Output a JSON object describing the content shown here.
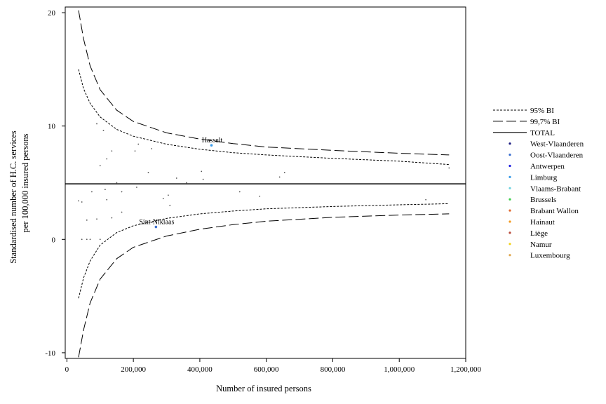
{
  "chart_data": {
    "type": "scatter",
    "title": "",
    "xlabel": "Number of insured persons",
    "ylabel_lines": [
      "Standardised number of H.C. services",
      "per 100,000 insured persons"
    ],
    "xlim": [
      -5000,
      1200000
    ],
    "ylim": [
      -10.5,
      20.5
    ],
    "x_ticks": [
      0,
      200000,
      400000,
      600000,
      800000,
      1000000,
      1200000
    ],
    "x_tick_labels": [
      "0",
      "200,000",
      "400,000",
      "600,000",
      "800,000",
      "1,000,000",
      "1,200,000"
    ],
    "y_ticks": [
      -10,
      0,
      10,
      20
    ],
    "y_tick_labels": [
      "-10",
      "0",
      "10",
      "20"
    ],
    "grid": false,
    "legend_position": "right",
    "total_rate": 4.9,
    "limits": {
      "ci95": {
        "label": "95% BI",
        "x": [
          35000,
          50000,
          70000,
          100000,
          150000,
          200000,
          300000,
          400000,
          500000,
          600000,
          800000,
          1000000,
          1150000
        ],
        "upper": [
          15.0,
          13.3,
          12.0,
          10.8,
          9.7,
          9.1,
          8.4,
          7.95,
          7.65,
          7.45,
          7.15,
          6.9,
          6.6
        ],
        "lower": [
          -5.2,
          -3.4,
          -1.9,
          -0.5,
          0.6,
          1.2,
          1.85,
          2.25,
          2.5,
          2.7,
          2.9,
          3.05,
          3.15
        ]
      },
      "ci997": {
        "label": "99,7% BI",
        "x": [
          35000,
          50000,
          70000,
          100000,
          150000,
          200000,
          300000,
          400000,
          500000,
          600000,
          800000,
          1000000,
          1150000
        ],
        "upper": [
          20.2,
          17.7,
          15.3,
          13.2,
          11.4,
          10.4,
          9.4,
          8.85,
          8.45,
          8.15,
          7.85,
          7.6,
          7.45
        ],
        "lower": [
          -10.4,
          -8.0,
          -5.6,
          -3.5,
          -1.7,
          -0.7,
          0.3,
          0.9,
          1.3,
          1.6,
          1.95,
          2.15,
          2.25
        ]
      }
    },
    "total_label": "TOTAL",
    "series": [
      {
        "name": "West-Vlaanderen",
        "color": "#1a1a80",
        "points": []
      },
      {
        "name": "Oost-Vlaanderen",
        "color": "#3a6ed0",
        "points": [
          {
            "x": 268000,
            "y": 1.1,
            "label": "Sint-Niklaas"
          }
        ]
      },
      {
        "name": "Antwerpen",
        "color": "#1f1fe0",
        "points": []
      },
      {
        "name": "Limburg",
        "color": "#3b9be8",
        "points": [
          {
            "x": 435000,
            "y": 8.3,
            "label": "Hasselt"
          }
        ]
      },
      {
        "name": "Vlaams-Brabant",
        "color": "#6fd3e0",
        "points": []
      },
      {
        "name": "Brussels",
        "color": "#3ccf4a",
        "points": []
      },
      {
        "name": "Brabant Wallon",
        "color": "#e06a30",
        "points": []
      },
      {
        "name": "Hainaut",
        "color": "#f39a1e",
        "points": []
      },
      {
        "name": "Liège",
        "color": "#b84a3a",
        "points": []
      },
      {
        "name": "Namur",
        "color": "#f2d21a",
        "points": []
      },
      {
        "name": "Luxembourg",
        "color": "#e0a850",
        "points": []
      }
    ],
    "background_points": [
      {
        "x": 90000,
        "y": 10.2
      },
      {
        "x": 110000,
        "y": 9.6
      },
      {
        "x": 215000,
        "y": 8.4
      },
      {
        "x": 205000,
        "y": 7.8
      },
      {
        "x": 255000,
        "y": 8.0
      },
      {
        "x": 135000,
        "y": 7.8
      },
      {
        "x": 120000,
        "y": 7.1
      },
      {
        "x": 100000,
        "y": 6.5
      },
      {
        "x": 245000,
        "y": 5.9
      },
      {
        "x": 405000,
        "y": 6.0
      },
      {
        "x": 655000,
        "y": 5.9
      },
      {
        "x": 640000,
        "y": 5.5
      },
      {
        "x": 330000,
        "y": 5.4
      },
      {
        "x": 410000,
        "y": 5.3
      },
      {
        "x": 150000,
        "y": 5.0
      },
      {
        "x": 360000,
        "y": 5.0
      },
      {
        "x": 210000,
        "y": 4.6
      },
      {
        "x": 115000,
        "y": 4.4
      },
      {
        "x": 75000,
        "y": 4.2
      },
      {
        "x": 165000,
        "y": 4.2
      },
      {
        "x": 520000,
        "y": 4.2
      },
      {
        "x": 305000,
        "y": 3.9
      },
      {
        "x": 580000,
        "y": 3.8
      },
      {
        "x": 290000,
        "y": 3.6
      },
      {
        "x": 120000,
        "y": 3.5
      },
      {
        "x": 35000,
        "y": 3.4
      },
      {
        "x": 45000,
        "y": 3.3
      },
      {
        "x": 310000,
        "y": 3.0
      },
      {
        "x": 1080000,
        "y": 3.5
      },
      {
        "x": 165000,
        "y": 2.4
      },
      {
        "x": 135000,
        "y": 1.9
      },
      {
        "x": 90000,
        "y": 1.8
      },
      {
        "x": 60000,
        "y": 1.7
      },
      {
        "x": 275000,
        "y": 1.7
      },
      {
        "x": 45000,
        "y": 0.0
      },
      {
        "x": 60000,
        "y": 0.0
      },
      {
        "x": 70000,
        "y": 0.0
      },
      {
        "x": 100000,
        "y": 0.0
      },
      {
        "x": 1150000,
        "y": 6.3
      }
    ]
  }
}
